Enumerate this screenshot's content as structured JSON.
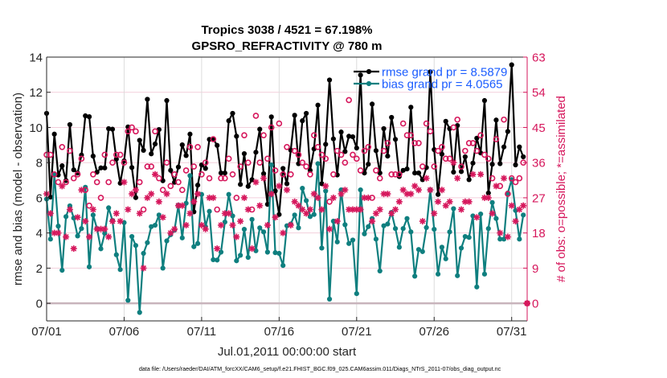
{
  "chart_data": {
    "type": "line",
    "title": [
      "Tropics 3038 / 4521 = 67.198%",
      "GPSRO_REFRACTIVITY @ 780 m"
    ],
    "xlabel": "Jul.01,2011 00:00:00 start",
    "ylabel_left": "rmse and bias (model - observation)",
    "ylabel_right": "# of obs: o=possible; *=assimilated",
    "x_units": "days since 07/01 00:00",
    "x_start": 0,
    "x_step": 0.25,
    "xlim": [
      0,
      31
    ],
    "xticks": [
      0,
      5,
      10,
      15,
      20,
      25,
      30
    ],
    "xticklabels": [
      "07/01",
      "07/06",
      "07/11",
      "07/16",
      "07/21",
      "07/26",
      "07/31"
    ],
    "ylim_left": [
      -1,
      14
    ],
    "yticks_left": [
      0,
      2,
      4,
      6,
      8,
      10,
      12,
      14
    ],
    "yticklabels_left": [
      "0",
      "2",
      "4",
      "6",
      "8",
      "10",
      "12",
      "14"
    ],
    "ylim_right": [
      -4.5,
      63
    ],
    "yticks_right": [
      0,
      9,
      18,
      27,
      36,
      45,
      54,
      63
    ],
    "yticklabels_right": [
      "0",
      "9",
      "18",
      "27",
      "36",
      "45",
      "54",
      "63"
    ],
    "grid": true,
    "zero_line": 0,
    "legend": {
      "position": "top-right",
      "entries": [
        {
          "label": "rmse grand pr = 8.5879",
          "series": "rmse"
        },
        {
          "label": "bias grand pr = 4.0565",
          "series": "bias"
        }
      ]
    },
    "colors": {
      "rmse": "#000000",
      "bias": "#0f7f7f",
      "obs": "#d6175c",
      "legend_text": "#1a5cff",
      "zero_line": "#c8b4bc",
      "grid_h": "#f3cfdc",
      "grid_v": "#dcdcdc"
    },
    "series": [
      {
        "name": "rmse",
        "axis": "left",
        "marker": "filled-circle",
        "line": true,
        "values": [
          10.8,
          6.04,
          9.62,
          7.3,
          7.82,
          6.98,
          10.16,
          7.59,
          7.41,
          8.43,
          10.66,
          10.61,
          8.37,
          7.46,
          7.7,
          7.7,
          9.93,
          9.9,
          8.2,
          6.83,
          8.1,
          10.03,
          7.72,
          6.01,
          9.27,
          8.7,
          11.6,
          8.5,
          9.06,
          9.88,
          6.97,
          11.53,
          7.56,
          6.88,
          7.75,
          9.01,
          8.4,
          9.62,
          5.2,
          6.72,
          7.87,
          7.67,
          9.32,
          9.35,
          8.98,
          7.41,
          7.41,
          10.38,
          10.8,
          9.5,
          6.76,
          8.51,
          6.65,
          7.03,
          8.59,
          9.9,
          7.37,
          5.63,
          10.6,
          6.39,
          5.05,
          7.67,
          6.8,
          8.71,
          10.69,
          7.94,
          10.38,
          10.8,
          7.56,
          8.78,
          11.27,
          6.8,
          9.04,
          12.7,
          9.35,
          7.3,
          9.74,
          8.63,
          9.5,
          9.47,
          8.83,
          12.98,
          7.41,
          7.91,
          11.33,
          8.68,
          7.41,
          9.93,
          8.37,
          10.57,
          9.32,
          7.21,
          7.56,
          7.64,
          11.15,
          7.41,
          7.41,
          7.03,
          7.72,
          13.16,
          8.74,
          6.19,
          8.48,
          10.35,
          9.93,
          7.46,
          10.11,
          7.49,
          8.33,
          7.03,
          7.97,
          9.39,
          8.55,
          11.53,
          6.27,
          7.91,
          10.42,
          7.94,
          8.89,
          9.77,
          13.56,
          7.87,
          8.89,
          8.33,
          null
        ]
      },
      {
        "name": "bias",
        "axis": "left",
        "marker": "filled-circle",
        "line": true,
        "values": [
          5.93,
          3.65,
          7.33,
          4.39,
          1.88,
          4.93,
          5.54,
          4.85,
          3.83,
          4.25,
          6.6,
          2.07,
          5.02,
          4.25,
          3.1,
          3.98,
          5.43,
          4.71,
          2.76,
          1.92,
          4.59,
          0.17,
          3.8,
          3.29,
          -0.52,
          2.84,
          3.45,
          4.36,
          4.44,
          5.02,
          2.0,
          3.55,
          3.9,
          4.16,
          5.58,
          3.72,
          5.69,
          7.26,
          3.22,
          3.4,
          6.19,
          4.36,
          5.23,
          2.48,
          2.46,
          2.91,
          4.62,
          6.19,
          4.97,
          2.42,
          2.73,
          4.21,
          2.61,
          4.77,
          2.99,
          4.29,
          4.06,
          2.91,
          7.87,
          2.88,
          2.84,
          2.15,
          4.41,
          4.51,
          5.02,
          4.29,
          6.54,
          5.84,
          4.93,
          5.05,
          7.94,
          3.14,
          6.39,
          0.24,
          4.67,
          3.49,
          6.45,
          4.47,
          3.4,
          3.6,
          0.55,
          6.45,
          3.95,
          4.36,
          4.82,
          3.65,
          1.84,
          4.41,
          4.51,
          5.17,
          4.25,
          3.19,
          4.25,
          4.82,
          4.06,
          1.54,
          3.06,
          2.94,
          4.31,
          6.45,
          4.21,
          1.66,
          3.19,
          2.53,
          4.06,
          5.38,
          1.57,
          3.14,
          3.8,
          3.75,
          4.97,
          0.93,
          5.08,
          1.66,
          4.25,
          5.73,
          4.82,
          3.65,
          3.65,
          6.27,
          7.03,
          5.28,
          3.65,
          5.02,
          null
        ]
      },
      {
        "name": "possible obs",
        "axis": "right",
        "marker": "open-circle",
        "line": false,
        "values": [
          38,
          38,
          33,
          31,
          40,
          31,
          39,
          32,
          33,
          37,
          29,
          25,
          33,
          31,
          27,
          38,
          31,
          36,
          38,
          38,
          36,
          44,
          45,
          44,
          31,
          24,
          35,
          35,
          44,
          32,
          29,
          36,
          30,
          33,
          31,
          29,
          34,
          40,
          35,
          40,
          33,
          36,
          32,
          42,
          24,
          32,
          32,
          37,
          33,
          27,
          35,
          43,
          36,
          24,
          48,
          36,
          43,
          37,
          45,
          34,
          46,
          33,
          40,
          33,
          39,
          38,
          36,
          35,
          33,
          43,
          40,
          38,
          37,
          26,
          33,
          39,
          38,
          36,
          52,
          38,
          37,
          34,
          39,
          40,
          27,
          34,
          32,
          39,
          41,
          33,
          33,
          33,
          46,
          43,
          43,
          41,
          41,
          35,
          46,
          44,
          35,
          39,
          40,
          37,
          37,
          45,
          47,
          35,
          39,
          41,
          41,
          39,
          43,
          38,
          37,
          32,
          42,
          30,
          47,
          28,
          32,
          31,
          32,
          36,
          0
        ]
      },
      {
        "name": "assimilated obs",
        "axis": "right",
        "marker": "asterisk",
        "line": false,
        "values": [
          28,
          23,
          18,
          18,
          30,
          17,
          24,
          14,
          22,
          29,
          21,
          17,
          24,
          19,
          19,
          19,
          17,
          21,
          23,
          21,
          31,
          24,
          28,
          29,
          23,
          9,
          27,
          28,
          33,
          26,
          22,
          28,
          18,
          19,
          25,
          25,
          20,
          23,
          26,
          28,
          20,
          19,
          27,
          27,
          14,
          20,
          23,
          23,
          20,
          17,
          21,
          27,
          24,
          14,
          31,
          25,
          32,
          20,
          28,
          22,
          30,
          18,
          29,
          20,
          26,
          25,
          24,
          23,
          24,
          28,
          27,
          24,
          30,
          19,
          27,
          21,
          28,
          29,
          24,
          24,
          24,
          24,
          27,
          27,
          21,
          23,
          24,
          28,
          28,
          23,
          24,
          26,
          29,
          28,
          28,
          30,
          29,
          21,
          32,
          29,
          23,
          26,
          29,
          25,
          26,
          36,
          32,
          24,
          26,
          26,
          33,
          22,
          33,
          27,
          27,
          23,
          30,
          18,
          32,
          17,
          25,
          21,
          24,
          25,
          0
        ]
      }
    ]
  },
  "footer": {
    "data_file": "data file: /Users/raeder/DAI/ATM_forcXX/CAM6_setup/f.e21.FHIST_BGC.f09_025.CAM6assim.011/Diags_NTrS_2011-07/obs_diag_output.nc"
  }
}
